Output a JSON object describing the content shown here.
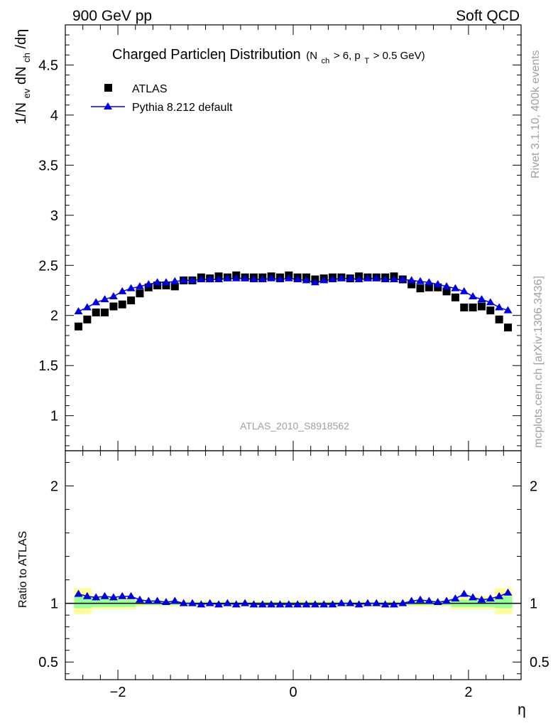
{
  "header": {
    "left": "900 GeV pp",
    "right": "Soft QCD"
  },
  "side_text": {
    "top": "Rivet 3.1.10,  400k events",
    "bottom": "mcplots.cern.ch [arXiv:1306.3436]"
  },
  "main_title": {
    "text": "Charged Particleη Distribution",
    "cut_prefix": "(N",
    "cut_sub1": "ch",
    "cut_mid": " > 6, p",
    "cut_sub2": "T",
    "cut_suffix": " > 0.5 GeV)"
  },
  "y_label": {
    "part1": "1/N",
    "sub1": "ev",
    "part2": " dN",
    "sub2": "ch",
    "part3": "/dη"
  },
  "analysis_tag": "ATLAS_2010_S8918562",
  "colors": {
    "mc": "#0000dd",
    "data": "#000000",
    "band_inner": "#99ff99",
    "band_outer": "#ffff99"
  },
  "chart_data": [
    {
      "type": "scatter",
      "panel": "main",
      "xlim": [
        -2.6,
        2.6
      ],
      "ylim": [
        0.65,
        4.9
      ],
      "yticks": [
        1,
        1.5,
        2,
        2.5,
        3,
        3.5,
        4,
        4.5
      ],
      "yticklabels": [
        "1",
        "1.5",
        "2",
        "2.5",
        "3",
        "3.5",
        "4",
        "4.5"
      ],
      "xticks": [
        -2,
        0,
        2
      ],
      "legend_position": "top-left",
      "x": [
        -2.45,
        -2.35,
        -2.25,
        -2.15,
        -2.05,
        -1.95,
        -1.85,
        -1.75,
        -1.65,
        -1.55,
        -1.45,
        -1.35,
        -1.25,
        -1.15,
        -1.05,
        -0.95,
        -0.85,
        -0.75,
        -0.65,
        -0.55,
        -0.45,
        -0.35,
        -0.25,
        -0.15,
        -0.05,
        0.05,
        0.15,
        0.25,
        0.35,
        0.45,
        0.55,
        0.65,
        0.75,
        0.85,
        0.95,
        1.05,
        1.15,
        1.25,
        1.35,
        1.45,
        1.55,
        1.65,
        1.75,
        1.85,
        1.95,
        2.05,
        2.15,
        2.25,
        2.35,
        2.45
      ],
      "series": [
        {
          "name": "ATLAS",
          "marker": "square",
          "values": [
            1.89,
            1.96,
            2.03,
            2.03,
            2.09,
            2.11,
            2.15,
            2.22,
            2.28,
            2.3,
            2.3,
            2.29,
            2.35,
            2.35,
            2.38,
            2.37,
            2.39,
            2.38,
            2.4,
            2.38,
            2.38,
            2.38,
            2.39,
            2.38,
            2.4,
            2.38,
            2.38,
            2.36,
            2.37,
            2.38,
            2.38,
            2.37,
            2.39,
            2.38,
            2.38,
            2.38,
            2.39,
            2.36,
            2.31,
            2.27,
            2.28,
            2.28,
            2.24,
            2.18,
            2.08,
            2.08,
            2.09,
            2.05,
            1.96,
            1.88
          ]
        },
        {
          "name": "Pythia 8.212 default",
          "marker": "triangle",
          "values": [
            2.04,
            2.08,
            2.13,
            2.16,
            2.19,
            2.24,
            2.27,
            2.29,
            2.31,
            2.33,
            2.33,
            2.34,
            2.35,
            2.35,
            2.36,
            2.36,
            2.36,
            2.37,
            2.37,
            2.37,
            2.36,
            2.36,
            2.37,
            2.36,
            2.37,
            2.36,
            2.35,
            2.33,
            2.35,
            2.36,
            2.37,
            2.37,
            2.36,
            2.37,
            2.37,
            2.36,
            2.36,
            2.36,
            2.35,
            2.34,
            2.33,
            2.31,
            2.29,
            2.27,
            2.24,
            2.19,
            2.16,
            2.13,
            2.08,
            2.05
          ]
        }
      ]
    },
    {
      "type": "scatter",
      "panel": "ratio",
      "ylabel": "Ratio to ATLAS",
      "xlabel": "η",
      "xlim": [
        -2.6,
        2.6
      ],
      "ylim": [
        0.35,
        2.3
      ],
      "yticks": [
        0.5,
        1,
        2
      ],
      "yticklabels": [
        "0.5",
        "1",
        "2"
      ],
      "xticks": [
        -2,
        0,
        2
      ],
      "xticklabels": [
        "−2",
        "0",
        "2"
      ],
      "reference_line": 1.0,
      "bands": [
        {
          "x0": -2.5,
          "x1": -2.3,
          "inner_lo": 0.96,
          "inner_hi": 1.06,
          "outer_lo": 0.91,
          "outer_hi": 1.13
        },
        {
          "x0": -2.3,
          "x1": -2.0,
          "inner_lo": 0.97,
          "inner_hi": 1.04,
          "outer_lo": 0.95,
          "outer_hi": 1.06
        },
        {
          "x0": -2.0,
          "x1": -1.8,
          "inner_lo": 0.97,
          "inner_hi": 1.03,
          "outer_lo": 0.95,
          "outer_hi": 1.05
        },
        {
          "x0": -1.8,
          "x1": -1.3,
          "inner_lo": 0.985,
          "inner_hi": 1.015,
          "outer_lo": 0.975,
          "outer_hi": 1.025
        },
        {
          "x0": -1.3,
          "x1": 1.3,
          "inner_lo": 0.99,
          "inner_hi": 1.01,
          "outer_lo": 0.985,
          "outer_hi": 1.02
        },
        {
          "x0": 1.3,
          "x1": 1.8,
          "inner_lo": 0.985,
          "inner_hi": 1.015,
          "outer_lo": 0.975,
          "outer_hi": 1.025
        },
        {
          "x0": 1.8,
          "x1": 2.0,
          "inner_lo": 0.97,
          "inner_hi": 1.03,
          "outer_lo": 0.95,
          "outer_hi": 1.05
        },
        {
          "x0": 2.0,
          "x1": 2.3,
          "inner_lo": 0.97,
          "inner_hi": 1.04,
          "outer_lo": 0.95,
          "outer_hi": 1.06
        },
        {
          "x0": 2.3,
          "x1": 2.5,
          "inner_lo": 0.96,
          "inner_hi": 1.06,
          "outer_lo": 0.91,
          "outer_hi": 1.13
        }
      ],
      "series": [
        {
          "name": "Pythia 8.212 default / ATLAS",
          "marker": "triangle",
          "values": [
            1.08,
            1.06,
            1.05,
            1.06,
            1.05,
            1.06,
            1.06,
            1.03,
            1.02,
            1.02,
            1.01,
            1.02,
            1.0,
            1.0,
            0.99,
            1.0,
            0.99,
            1.0,
            0.99,
            1.0,
            0.99,
            0.99,
            0.99,
            0.99,
            0.99,
            0.99,
            0.99,
            0.99,
            0.99,
            0.99,
            1.0,
            1.0,
            0.99,
            1.0,
            1.0,
            0.99,
            0.99,
            1.0,
            1.02,
            1.03,
            1.02,
            1.01,
            1.02,
            1.04,
            1.08,
            1.05,
            1.03,
            1.04,
            1.06,
            1.09
          ]
        }
      ]
    }
  ]
}
